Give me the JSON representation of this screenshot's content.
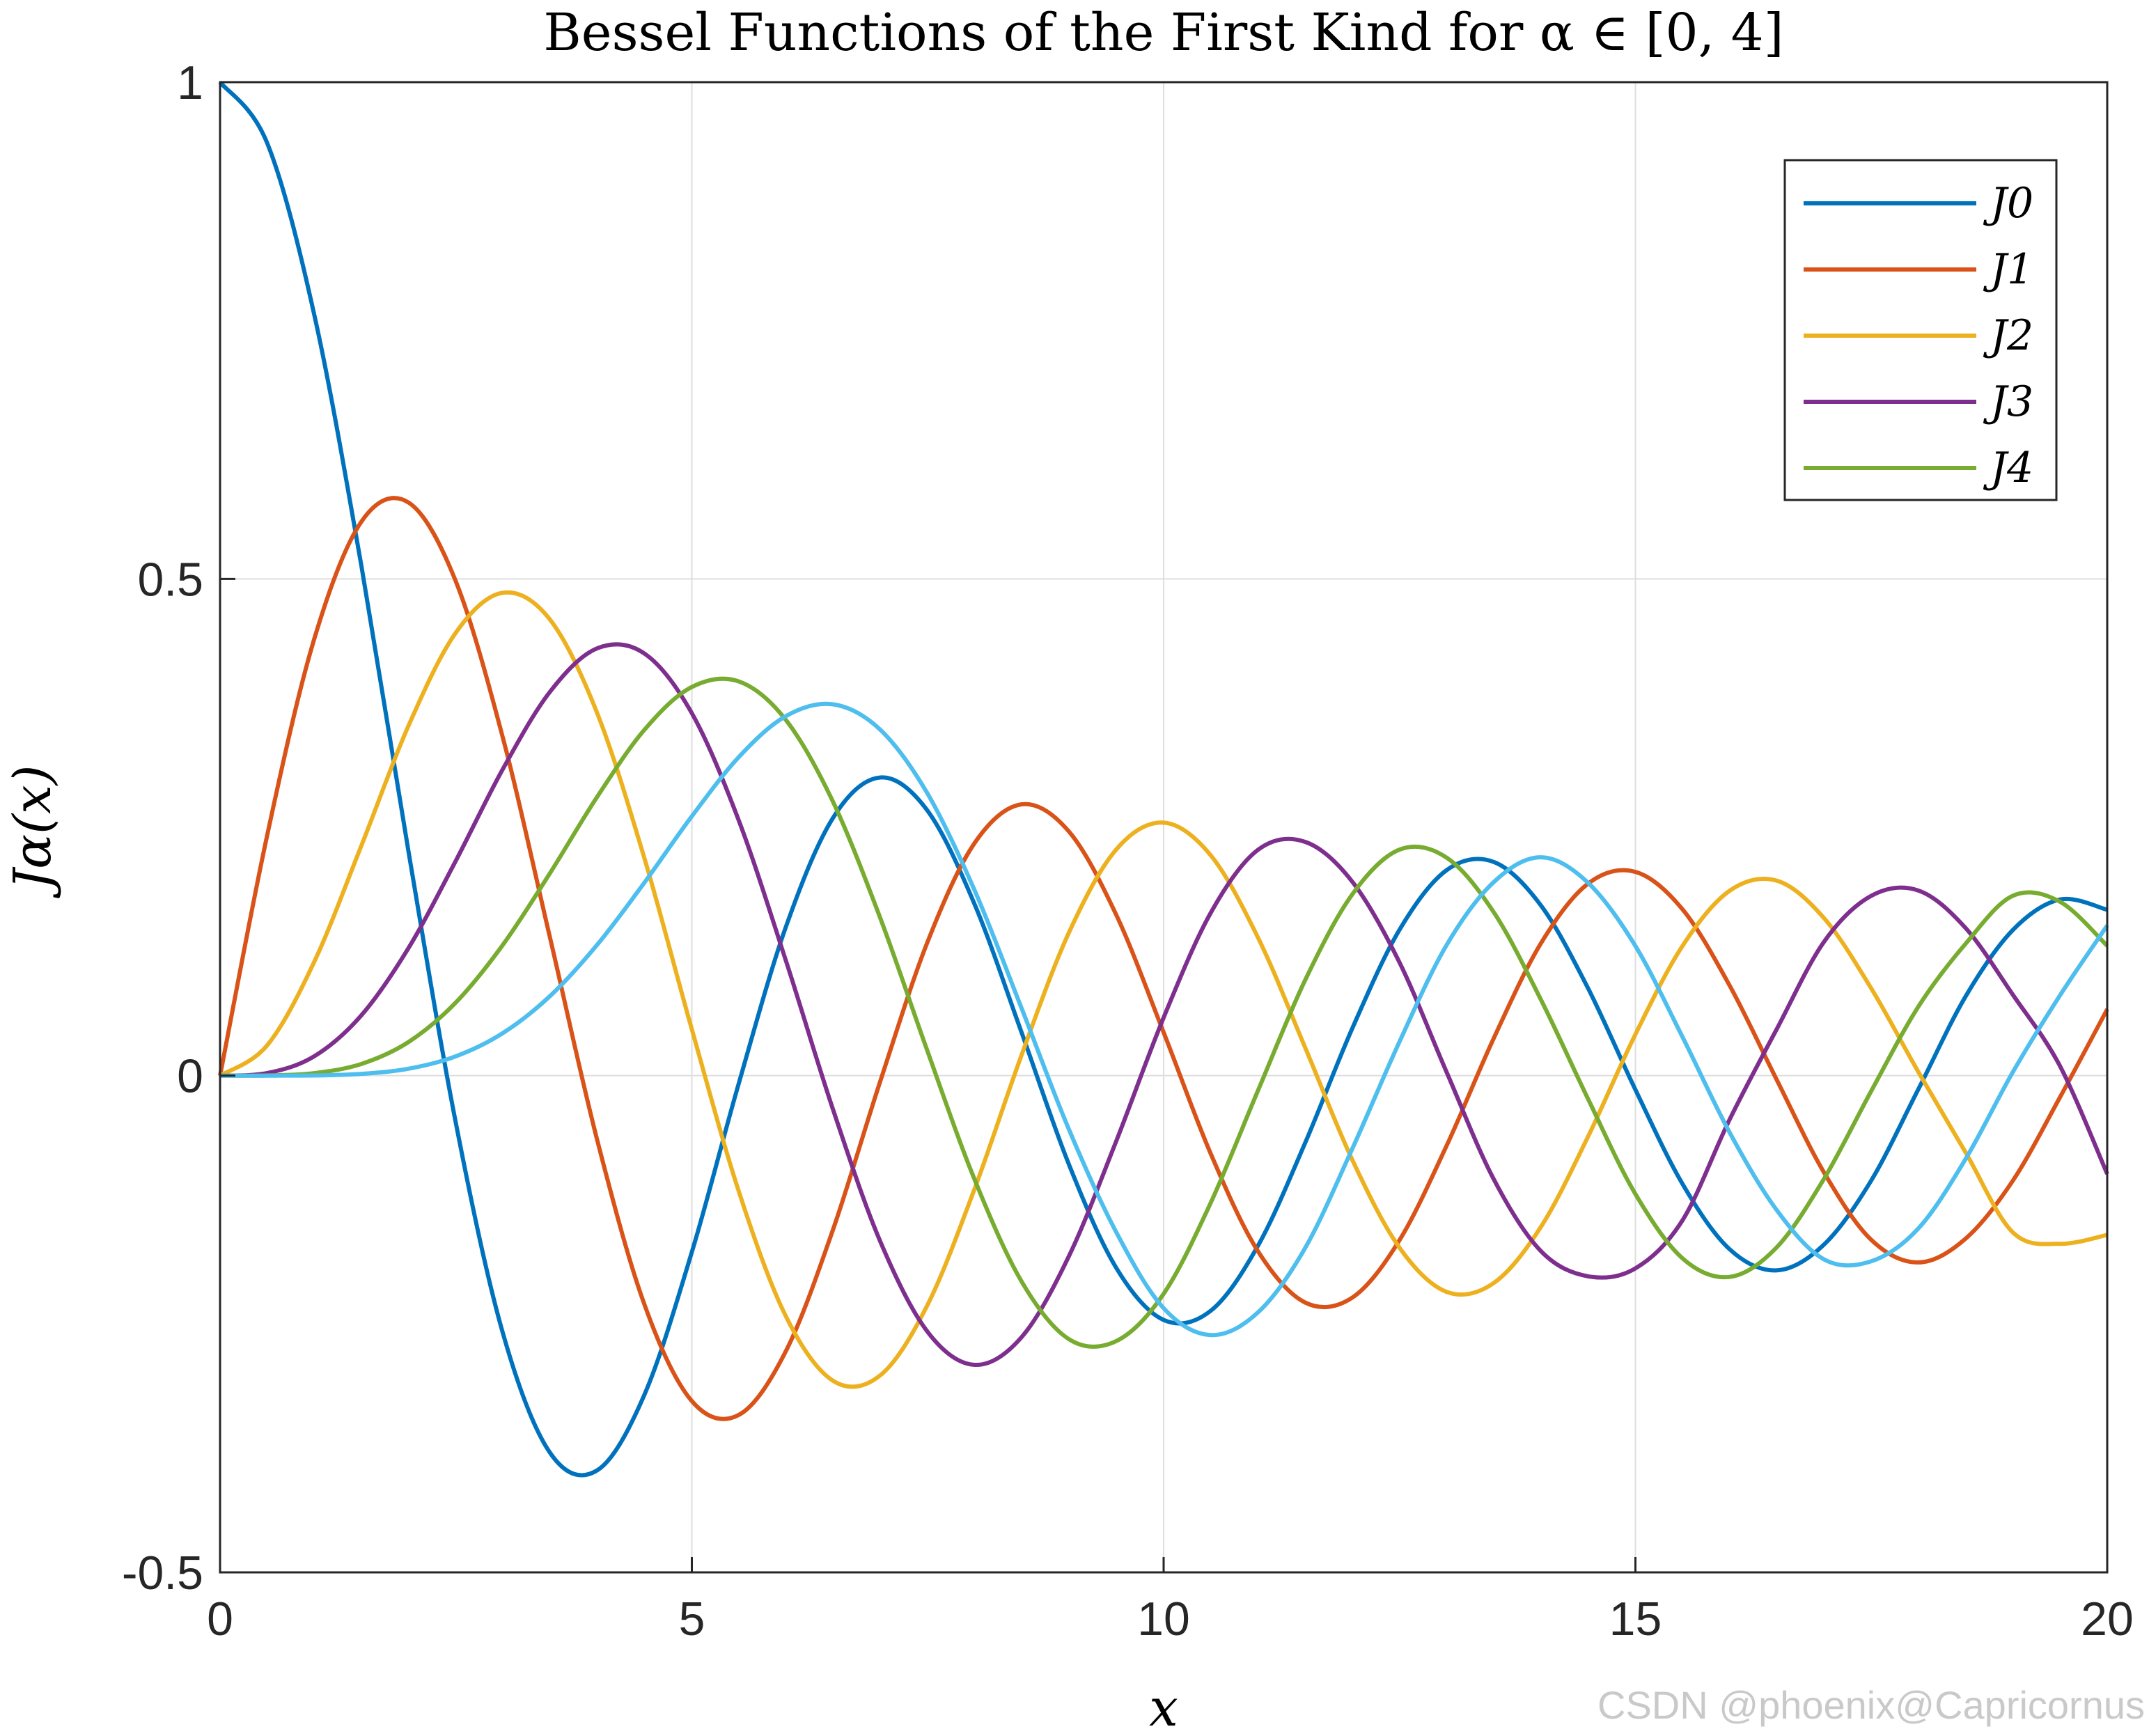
{
  "chart_data": {
    "type": "line",
    "title": "Bessel Functions of the First Kind for α ∈ [0, 4]",
    "xlabel": "x",
    "ylabel": "Jα(x)",
    "xlim": [
      0,
      20
    ],
    "ylim": [
      -0.5,
      1
    ],
    "x_ticks": [
      0,
      5,
      10,
      15,
      20
    ],
    "x_tick_labels": [
      "0",
      "5",
      "10",
      "15",
      "20"
    ],
    "y_ticks": [
      -0.5,
      0,
      0.5,
      1
    ],
    "y_tick_labels": [
      "-0.5",
      "0",
      "0.5",
      "1"
    ],
    "grid": true,
    "legend_position": "top-right",
    "x": [
      0,
      0.5,
      1,
      1.5,
      2,
      2.5,
      3,
      3.5,
      4,
      4.5,
      5,
      5.5,
      6,
      6.5,
      7,
      7.5,
      8,
      8.5,
      9,
      9.5,
      10,
      10.5,
      11,
      11.5,
      12,
      12.5,
      13,
      13.5,
      14,
      14.5,
      15,
      15.5,
      16,
      16.5,
      17,
      17.5,
      18,
      18.5,
      19,
      19.5,
      20
    ],
    "series": [
      {
        "name": "J0",
        "color": "#0072BD",
        "values": [
          1.0,
          0.9385,
          0.7652,
          0.5118,
          0.2239,
          -0.0484,
          -0.2601,
          -0.3801,
          -0.3971,
          -0.3205,
          -0.1776,
          -0.0068,
          0.1506,
          0.2601,
          0.3001,
          0.2663,
          0.1717,
          0.0419,
          -0.0903,
          -0.1939,
          -0.2459,
          -0.2366,
          -0.1712,
          -0.0677,
          0.0477,
          0.1469,
          0.2069,
          0.215,
          0.1711,
          0.0875,
          -0.0142,
          -0.1092,
          -0.1749,
          -0.196,
          -0.1699,
          -0.1054,
          -0.0134,
          0.0799,
          0.1466,
          0.1773,
          0.167
        ]
      },
      {
        "name": "J1",
        "color": "#D95319",
        "values": [
          0.0,
          0.2423,
          0.4401,
          0.5579,
          0.5767,
          0.4971,
          0.3391,
          0.1374,
          -0.066,
          -0.2311,
          -0.3276,
          -0.3414,
          -0.2767,
          -0.1538,
          -0.0047,
          0.1352,
          0.2346,
          0.2731,
          0.2453,
          0.1613,
          0.0435,
          -0.0789,
          -0.1768,
          -0.2284,
          -0.2234,
          -0.1655,
          -0.0703,
          0.038,
          0.1334,
          0.1934,
          0.2051,
          0.1672,
          0.0904,
          -0.0047,
          -0.0977,
          -0.1654,
          -0.188,
          -0.164,
          -0.1057,
          -0.0216,
          0.0668
        ]
      },
      {
        "name": "J2",
        "color": "#EDB120",
        "values": [
          0.0,
          0.0306,
          0.1149,
          0.2321,
          0.3528,
          0.4461,
          0.4861,
          0.4586,
          0.3641,
          0.2178,
          0.0466,
          -0.1173,
          -0.2429,
          -0.3074,
          -0.3014,
          -0.2303,
          -0.113,
          0.0223,
          0.1448,
          0.2279,
          0.2546,
          0.2216,
          0.139,
          0.0283,
          -0.0849,
          -0.1733,
          -0.2177,
          -0.2086,
          -0.152,
          -0.0609,
          0.0416,
          0.1308,
          0.1862,
          0.1962,
          0.1584,
          0.0876,
          0.0035,
          -0.0775,
          -0.1578,
          -0.1693,
          -0.1603
        ]
      },
      {
        "name": "J3",
        "color": "#7E2F8E",
        "values": [
          0.0,
          0.0026,
          0.0196,
          0.061,
          0.1289,
          0.2166,
          0.3091,
          0.3868,
          0.4302,
          0.4247,
          0.3648,
          0.2561,
          0.1148,
          -0.0353,
          -0.1676,
          -0.2581,
          -0.2911,
          -0.2626,
          -0.1809,
          -0.0653,
          0.0584,
          0.1641,
          0.2273,
          0.2353,
          0.1951,
          0.1138,
          0.0033,
          -0.1046,
          -0.1768,
          -0.202,
          -0.194,
          -0.1454,
          -0.0438,
          0.0473,
          0.1349,
          0.181,
          0.1863,
          0.1484,
          0.0814,
          0.0095,
          -0.0989
        ]
      },
      {
        "name": "J4",
        "color": "#77AC30",
        "values": [
          0.0,
          0.0002,
          0.0025,
          0.0118,
          0.034,
          0.0738,
          0.132,
          0.2044,
          0.2811,
          0.3484,
          0.3912,
          0.3967,
          0.3576,
          0.2748,
          0.1578,
          0.0238,
          -0.1054,
          -0.2081,
          -0.2655,
          -0.2671,
          -0.2196,
          -0.1277,
          -0.015,
          0.0961,
          0.1825,
          0.2275,
          0.2193,
          0.1642,
          0.0762,
          -0.0239,
          -0.1192,
          -0.184,
          -0.2026,
          -0.1725,
          -0.1036,
          -0.0153,
          0.0697,
          0.1329,
          0.181,
          0.175,
          0.1307
        ]
      },
      {
        "color": "#4DBEEE",
        "values": [
          0.0,
          0.0,
          0.0002,
          0.0018,
          0.007,
          0.0195,
          0.043,
          0.0804,
          0.1321,
          0.1947,
          0.2611,
          0.3209,
          0.3621,
          0.3737,
          0.3479,
          0.2835,
          0.1858,
          0.0664,
          -0.055,
          -0.158,
          -0.2341,
          -0.2611,
          -0.2383,
          -0.1735,
          -0.0735,
          0.0343,
          0.1316,
          0.195,
          0.2198,
          0.1939,
          0.1305,
          0.0387,
          -0.0575,
          -0.1357,
          -0.185,
          -0.1868,
          -0.1537,
          -0.0837,
          0.0036,
          0.0809,
          0.1511
        ]
      }
    ]
  },
  "watermark": "CSDN @phoenix@Capricornus"
}
